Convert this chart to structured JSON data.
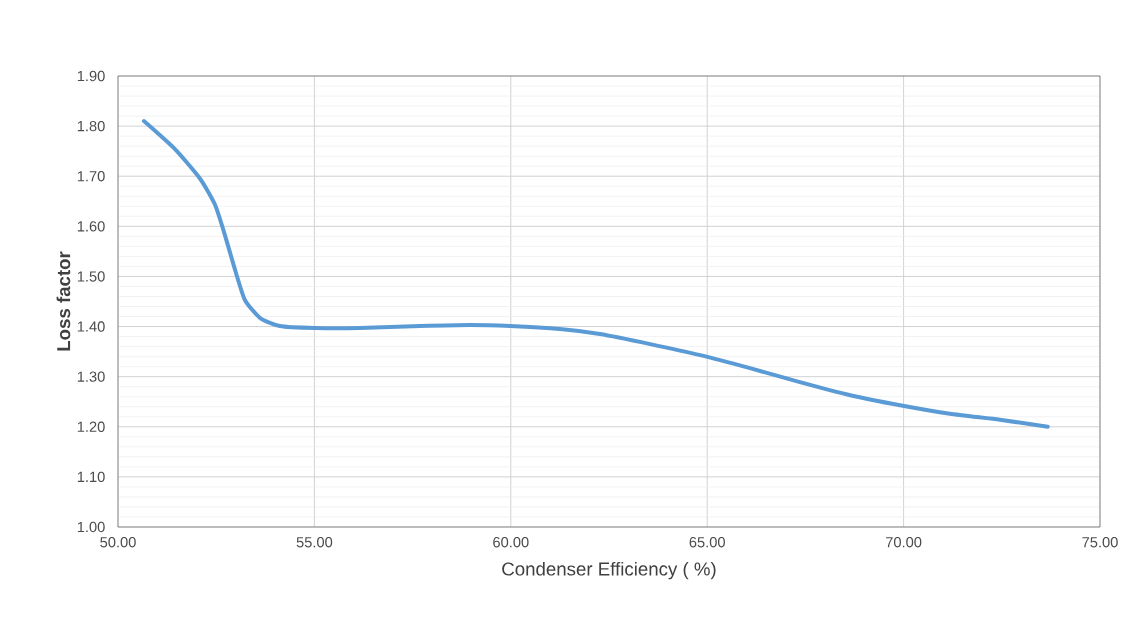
{
  "chart_data": {
    "type": "line",
    "xlabel": "Condenser Efficiency ( %)",
    "ylabel": "Loss factor",
    "xlim": [
      50,
      75
    ],
    "xticks": [
      {
        "value": 50,
        "label": "50.00"
      },
      {
        "value": 55,
        "label": "55.00"
      },
      {
        "value": 60,
        "label": "60.00"
      },
      {
        "value": 65,
        "label": "65.00"
      },
      {
        "value": 70,
        "label": "70.00"
      },
      {
        "value": 75,
        "label": "75.00"
      }
    ],
    "ylim": [
      1.0,
      1.9
    ],
    "yticks": [
      {
        "value": 1.0,
        "label": "1.00"
      },
      {
        "value": 1.1,
        "label": "1.10"
      },
      {
        "value": 1.2,
        "label": "1.20"
      },
      {
        "value": 1.3,
        "label": "1.30"
      },
      {
        "value": 1.4,
        "label": "1.40"
      },
      {
        "value": 1.5,
        "label": "1.50"
      },
      {
        "value": 1.6,
        "label": "1.60"
      },
      {
        "value": 1.7,
        "label": "1.70"
      },
      {
        "value": 1.8,
        "label": "1.80"
      },
      {
        "value": 1.9,
        "label": "1.90"
      }
    ],
    "grid": true,
    "marker": "none",
    "line_style": "solid",
    "series": [
      {
        "color": "#5b9bd5",
        "x": [
          50.66,
          51.45,
          52.09,
          52.47,
          52.72,
          52.98,
          53.23,
          53.62,
          54.12,
          55.02,
          56.16,
          57.69,
          58.96,
          59.98,
          61.25,
          62.27,
          63.55,
          64.82,
          66.09,
          67.36,
          68.64,
          69.91,
          71.18,
          72.45,
          73.67
        ],
        "values": [
          1.81,
          1.754,
          1.695,
          1.643,
          1.583,
          1.513,
          1.453,
          1.417,
          1.401,
          1.397,
          1.397,
          1.401,
          1.403,
          1.401,
          1.395,
          1.385,
          1.365,
          1.343,
          1.317,
          1.289,
          1.263,
          1.243,
          1.226,
          1.214,
          1.2
        ]
      }
    ]
  }
}
